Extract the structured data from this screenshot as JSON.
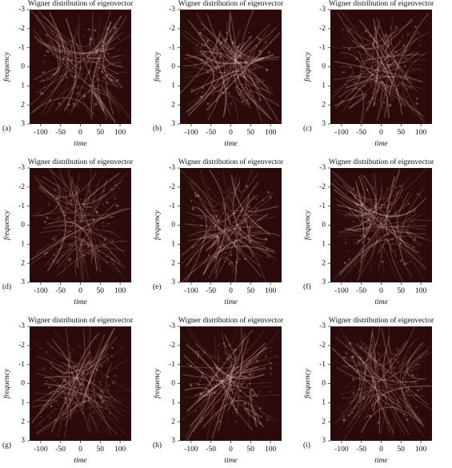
{
  "chart_data": [
    {
      "type": "heatmap",
      "title": "Wigner distribution of eigenvector",
      "panel_label": "(a)",
      "xlabel": "time",
      "ylabel": "frequency",
      "xlim": [
        -128,
        128
      ],
      "ylim": [
        3,
        -3
      ],
      "xticks": [
        -100,
        -50,
        0,
        50,
        100
      ],
      "yticks": [
        -3,
        -2,
        -1,
        0,
        1,
        2,
        3
      ]
    },
    {
      "type": "heatmap",
      "title": "Wigner distribution of eigenvector",
      "panel_label": "(b)",
      "xlabel": "time",
      "ylabel": "frequency",
      "xlim": [
        -128,
        128
      ],
      "ylim": [
        3,
        -3
      ],
      "xticks": [
        -100,
        -50,
        0,
        50,
        100
      ],
      "yticks": [
        -3,
        -2,
        -1,
        0,
        1,
        2,
        3
      ]
    },
    {
      "type": "heatmap",
      "title": "Wigner distribution of eigenvector",
      "panel_label": "(c)",
      "xlabel": "time",
      "ylabel": "frequency",
      "xlim": [
        -128,
        128
      ],
      "ylim": [
        3,
        -3
      ],
      "xticks": [
        -100,
        -50,
        0,
        50,
        100
      ],
      "yticks": [
        -3,
        -2,
        -1,
        0,
        1,
        2,
        3
      ]
    },
    {
      "type": "heatmap",
      "title": "Wigner distribution of eigenvector",
      "panel_label": "(d)",
      "xlabel": "time",
      "ylabel": "frequency",
      "xlim": [
        -128,
        128
      ],
      "ylim": [
        3,
        -3
      ],
      "xticks": [
        -100,
        -50,
        0,
        50,
        100
      ],
      "yticks": [
        -3,
        -2,
        -1,
        0,
        1,
        2,
        3
      ]
    },
    {
      "type": "heatmap",
      "title": "Wigner distribution of eigenvector",
      "panel_label": "(e)",
      "xlabel": "time",
      "ylabel": "frequency",
      "xlim": [
        -128,
        128
      ],
      "ylim": [
        3,
        -3
      ],
      "xticks": [
        -100,
        -50,
        0,
        50,
        100
      ],
      "yticks": [
        -3,
        -2,
        -1,
        0,
        1,
        2,
        3
      ]
    },
    {
      "type": "heatmap",
      "title": "Wigner distribution of eigenvector",
      "panel_label": "(f)",
      "xlabel": "time",
      "ylabel": "frequency",
      "xlim": [
        -128,
        128
      ],
      "ylim": [
        3,
        -3
      ],
      "xticks": [
        -100,
        -50,
        0,
        50,
        100
      ],
      "yticks": [
        -3,
        -2,
        -1,
        0,
        1,
        2,
        3
      ]
    },
    {
      "type": "heatmap",
      "title": "Wigner distribution of eigenvector",
      "panel_label": "(g)",
      "xlabel": "time",
      "ylabel": "frequency",
      "xlim": [
        -128,
        128
      ],
      "ylim": [
        3,
        -3
      ],
      "xticks": [
        -100,
        -50,
        0,
        50,
        100
      ],
      "yticks": [
        -3,
        -2,
        -1,
        0,
        1,
        2,
        3
      ]
    },
    {
      "type": "heatmap",
      "title": "Wigner distribution of eigenvector",
      "panel_label": "(h)",
      "xlabel": "time",
      "ylabel": "frequency",
      "xlim": [
        -128,
        128
      ],
      "ylim": [
        3,
        -3
      ],
      "xticks": [
        -100,
        -50,
        0,
        50,
        100
      ],
      "yticks": [
        -3,
        -2,
        -1,
        0,
        1,
        2,
        3
      ]
    },
    {
      "type": "heatmap",
      "title": "Wigner distribution of eigenvector",
      "panel_label": "(i)",
      "xlabel": "time",
      "ylabel": "frequency",
      "xlim": [
        -128,
        128
      ],
      "ylim": [
        3,
        -3
      ],
      "xticks": [
        -100,
        -50,
        0,
        50,
        100
      ],
      "yticks": [
        -3,
        -2,
        -1,
        0,
        1,
        2,
        3
      ]
    }
  ]
}
